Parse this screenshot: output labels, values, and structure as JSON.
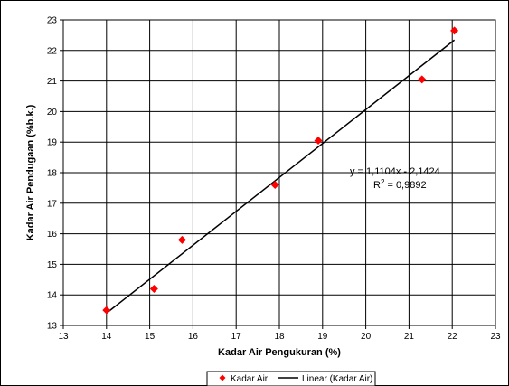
{
  "chart_data": {
    "type": "scatter",
    "xlabel": "Kadar Air Pengukuran (%)",
    "ylabel": "Kadar Air Pendugaan (%b.k.)",
    "xlim": [
      13,
      23
    ],
    "ylim": [
      13,
      23
    ],
    "xticks": [
      "13",
      "14",
      "15",
      "16",
      "17",
      "18",
      "19",
      "20",
      "21",
      "22",
      "23"
    ],
    "yticks": [
      "13",
      "14",
      "15",
      "16",
      "17",
      "18",
      "19",
      "20",
      "21",
      "22",
      "23"
    ],
    "grid": true,
    "legend": "bottom",
    "series": [
      {
        "name": "Kadar Air",
        "marker": "diamond",
        "color": "#ff0000",
        "points": [
          {
            "x": 14.0,
            "y": 13.5
          },
          {
            "x": 15.1,
            "y": 14.2
          },
          {
            "x": 15.75,
            "y": 15.8
          },
          {
            "x": 17.9,
            "y": 17.6
          },
          {
            "x": 18.9,
            "y": 19.05
          },
          {
            "x": 21.3,
            "y": 21.05
          },
          {
            "x": 22.05,
            "y": 22.65
          }
        ]
      },
      {
        "name": "Linear (Kadar Air)",
        "type": "line",
        "color": "#000000",
        "x": [
          14.0,
          22.05
        ],
        "slope": 1.1104,
        "intercept": -2.1424
      }
    ],
    "annotations": {
      "equation": "y = 1,1104x - 2,1424",
      "r2_prefix": "R",
      "r2_sup": "2",
      "r2_suffix": " = 0,9892"
    }
  }
}
